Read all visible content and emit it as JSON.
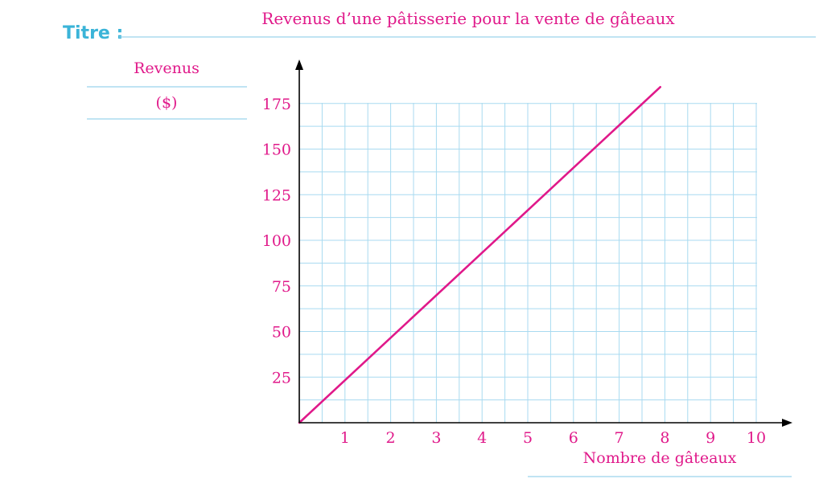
{
  "header": {
    "titre_label": "Titre :"
  },
  "chart_data": {
    "type": "line",
    "title": "Revenus d’une pâtisserie pour la vente de gâteaux",
    "ylabel": "Revenus",
    "ylabel_unit": "($)",
    "xlabel": "Nombre de gâteaux",
    "xlim": [
      0,
      10
    ],
    "ylim": [
      0,
      175
    ],
    "x_ticks": [
      "1",
      "2",
      "3",
      "4",
      "5",
      "6",
      "7",
      "8",
      "9",
      "10"
    ],
    "y_ticks": [
      "25",
      "50",
      "75",
      "100",
      "125",
      "150",
      "175"
    ],
    "grid": true,
    "series": [
      {
        "x": [
          0,
          7.9
        ],
        "y": [
          0,
          184
        ],
        "color": "#e0198a"
      }
    ]
  }
}
